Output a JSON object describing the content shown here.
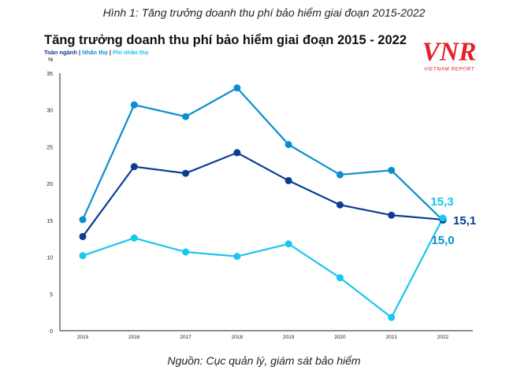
{
  "caption_top": "Hình 1: Tăng trưởng doanh thu phí bảo hiểm giai đoạn 2015-2022",
  "caption_bottom": "Nguồn: Cục quản lý, giám sát bảo hiểm",
  "logo": {
    "text": "VNR",
    "subtext": "VIETNAM REPORT",
    "color": "#e3212b"
  },
  "legend_sep": "|",
  "chart_data": {
    "type": "line",
    "title": "Tăng trưởng doanh thu phí bảo hiểm giai đoạn 2015 - 2022",
    "ylabel": "%",
    "xlabel": "",
    "ylim": [
      0,
      35
    ],
    "yticks": [
      "0",
      "5",
      "10",
      "15",
      "20",
      "25",
      "30",
      "35"
    ],
    "categories": [
      "2015",
      "2016",
      "2017",
      "2018",
      "2019",
      "2020",
      "2021",
      "2022"
    ],
    "series": [
      {
        "name": "Toàn ngành",
        "color": "#0a3d91",
        "values": [
          12.8,
          22.3,
          21.4,
          24.2,
          20.4,
          17.1,
          15.7,
          15.1
        ],
        "end_label": "15,1"
      },
      {
        "name": "Nhân thọ",
        "color": "#0b8ecf",
        "values": [
          15.1,
          30.7,
          29.1,
          33.0,
          25.3,
          21.2,
          21.8,
          15.0
        ],
        "end_label": "15,0"
      },
      {
        "name": "Phi nhân thọ",
        "color": "#19c6ee",
        "values": [
          10.2,
          12.6,
          10.7,
          10.1,
          11.8,
          7.2,
          1.8,
          15.3
        ],
        "end_label": "15,3"
      }
    ],
    "legend": "top-left",
    "grid": false
  }
}
